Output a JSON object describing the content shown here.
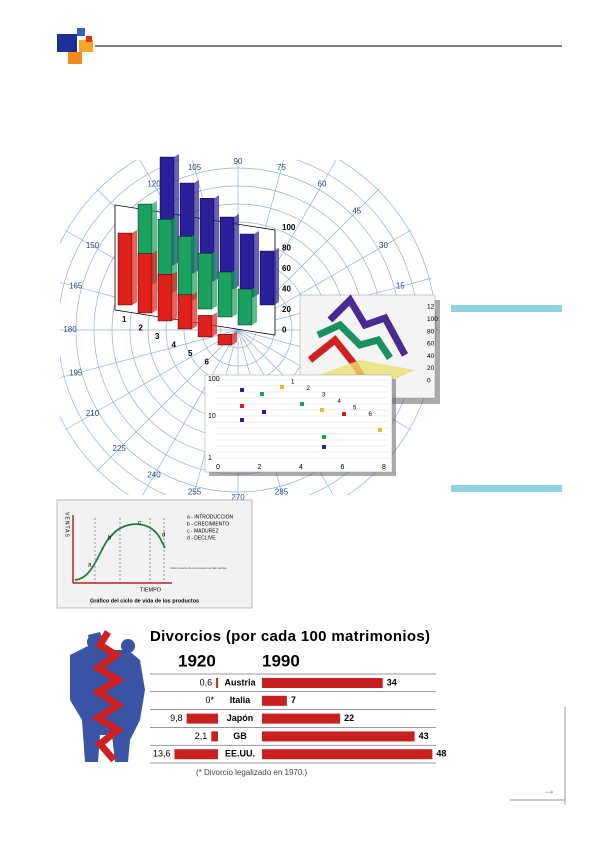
{
  "collage": {
    "polar_labels": [
      15,
      30,
      45,
      60,
      75,
      90,
      105,
      120,
      150,
      165,
      180,
      195,
      210,
      225,
      240,
      255,
      270,
      285
    ],
    "bar3d_axis": [
      100,
      80,
      60,
      40,
      20,
      0
    ],
    "bar3d_categories": [
      "1",
      "2",
      "3",
      "4",
      "5",
      "6"
    ],
    "ribbon_axis": [
      "12",
      "100",
      "80",
      "60",
      "40",
      "20",
      "0"
    ],
    "scatter_yticks": [
      "100",
      "10",
      "1"
    ],
    "scatter_xticks": [
      "0",
      "2",
      "4",
      "6",
      "8"
    ],
    "scatter_point_labels": [
      "1",
      "2",
      "3",
      "4",
      "5",
      "6"
    ]
  },
  "lifecycle": {
    "y_label": "VENTAS",
    "x_label": "TIEMPO",
    "phase_letters": [
      "a",
      "b",
      "c",
      "d"
    ],
    "legend": [
      "a - INTRODUCCION",
      "b - CRECIMIENTO",
      "c - MADUREZ",
      "d - DECLIVE"
    ],
    "note": "Ciclo nuestro de la inversión en las ventas",
    "caption": "Gráfico del ciclo de vida de los productos"
  },
  "divorce_chart": {
    "type": "bar",
    "title": "Divorcios (por cada 100 matrimonios)",
    "categories": [
      "Austria",
      "Italia",
      "Japón",
      "GB",
      "EE.UU."
    ],
    "series": [
      {
        "name": "1920",
        "color": "#c8201e",
        "values": [
          0.6,
          0,
          9.8,
          2.1,
          13.6
        ],
        "value_labels": [
          "0,6",
          "0*",
          "9,8",
          "2,1",
          "13,6"
        ]
      },
      {
        "name": "1990",
        "color": "#c8201e",
        "values": [
          34,
          7,
          22,
          43,
          48
        ]
      }
    ],
    "footnote": "(* Divorcio legalizado en 1970.)"
  }
}
